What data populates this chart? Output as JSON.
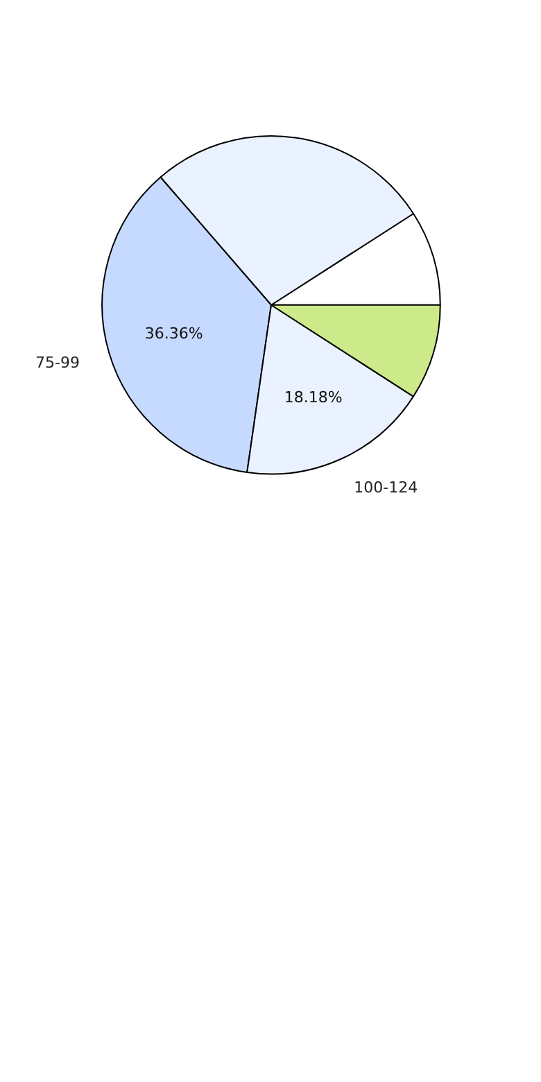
{
  "chart_data": {
    "type": "pie",
    "categories": [
      null,
      null,
      "75-99",
      "100-124",
      null
    ],
    "values": [
      9.09,
      27.27,
      36.36,
      18.18,
      9.1
    ],
    "colors": [
      "#ffffff",
      "#eaf2ff",
      "#c6d9ff",
      "#eaf2ff",
      "#cdea8a"
    ],
    "value_labels": [
      null,
      null,
      "36.36%",
      "18.18%",
      null
    ]
  }
}
